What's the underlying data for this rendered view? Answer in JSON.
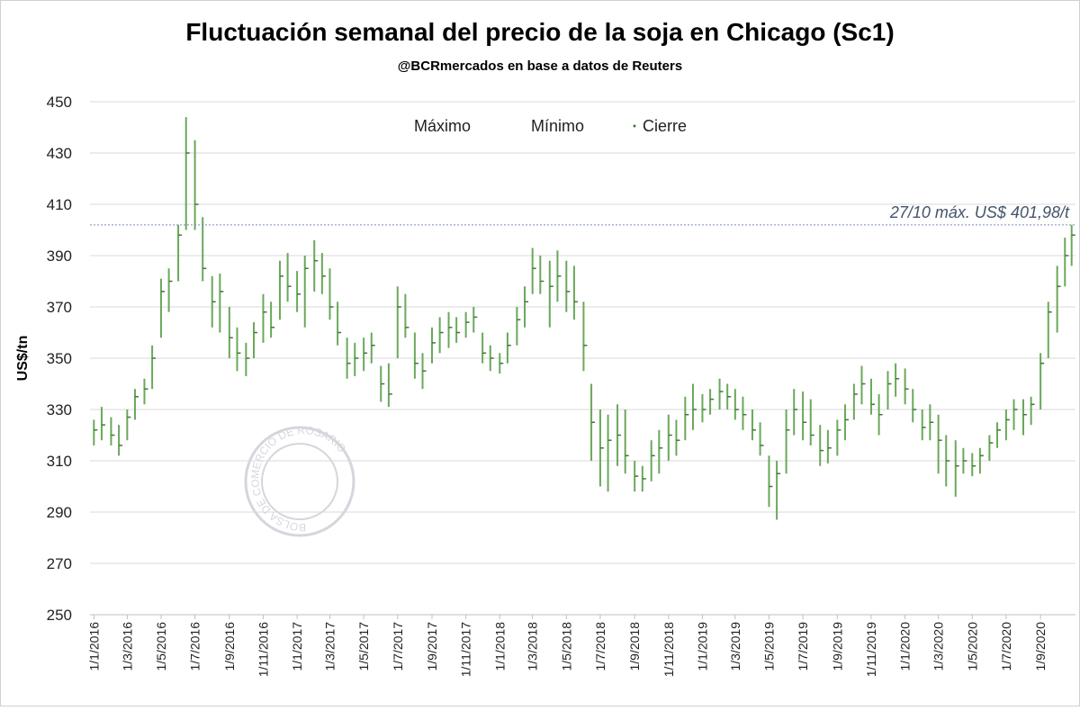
{
  "chart_data": {
    "type": "hlc",
    "title": "Fluctuación semanal del precio de la soja en Chicago (Sc1)",
    "subtitle": "@BCRmercados en base a datos de Reuters",
    "y_label": "US$/tn",
    "watermark": "BOLSA DE COMERCIO DE ROSARIO",
    "color": "#6aa85a",
    "grid": true,
    "legend": "top",
    "annotation": {
      "text": "27/10 máx. US$ 401,98/t",
      "value": 401.98
    },
    "xlim": [
      "25/12/2015",
      "3/11/2020"
    ],
    "xticks": [
      "1/1/2016",
      "1/3/2016",
      "1/5/2016",
      "1/7/2016",
      "1/9/2016",
      "1/11/2016",
      "1/1/2017",
      "1/3/2017",
      "1/5/2017",
      "1/7/2017",
      "1/9/2017",
      "1/11/2017",
      "1/1/2018",
      "1/3/2018",
      "1/5/2018",
      "1/7/2018",
      "1/9/2018",
      "1/11/2018",
      "1/1/2019",
      "1/3/2019",
      "1/5/2019",
      "1/7/2019",
      "1/9/2019",
      "1/11/2019",
      "1/1/2020",
      "1/3/2020",
      "1/5/2020",
      "1/7/2020",
      "1/9/2020"
    ],
    "ylim": [
      250,
      450
    ],
    "yticks": [
      250,
      270,
      290,
      310,
      330,
      350,
      370,
      390,
      410,
      430,
      450
    ],
    "x": [
      "1/1/2016",
      "15/1/2016",
      "1/2/2016",
      "15/2/2016",
      "1/3/2016",
      "15/3/2016",
      "1/4/2016",
      "15/4/2016",
      "1/5/2016",
      "15/5/2016",
      "1/6/2016",
      "15/6/2016",
      "1/7/2016",
      "15/7/2016",
      "1/8/2016",
      "15/8/2016",
      "1/9/2016",
      "15/9/2016",
      "1/10/2016",
      "15/10/2016",
      "1/11/2016",
      "15/11/2016",
      "1/12/2016",
      "15/12/2016",
      "1/1/2017",
      "15/1/2017",
      "1/2/2017",
      "15/2/2017",
      "1/3/2017",
      "15/3/2017",
      "1/4/2017",
      "15/4/2017",
      "1/5/2017",
      "15/5/2017",
      "1/6/2017",
      "15/6/2017",
      "1/7/2017",
      "15/7/2017",
      "1/8/2017",
      "15/8/2017",
      "1/9/2017",
      "15/9/2017",
      "1/10/2017",
      "15/10/2017",
      "1/11/2017",
      "15/11/2017",
      "1/12/2017",
      "15/12/2017",
      "1/1/2018",
      "15/1/2018",
      "1/2/2018",
      "15/2/2018",
      "1/3/2018",
      "15/3/2018",
      "1/4/2018",
      "15/4/2018",
      "1/5/2018",
      "15/5/2018",
      "1/6/2018",
      "15/6/2018",
      "1/7/2018",
      "15/7/2018",
      "1/8/2018",
      "15/8/2018",
      "1/9/2018",
      "15/9/2018",
      "1/10/2018",
      "15/10/2018",
      "1/11/2018",
      "15/11/2018",
      "1/12/2018",
      "15/12/2018",
      "1/1/2019",
      "15/1/2019",
      "1/2/2019",
      "15/2/2019",
      "1/3/2019",
      "15/3/2019",
      "1/4/2019",
      "15/4/2019",
      "1/5/2019",
      "15/5/2019",
      "1/6/2019",
      "15/6/2019",
      "1/7/2019",
      "15/7/2019",
      "1/8/2019",
      "15/8/2019",
      "1/9/2019",
      "15/9/2019",
      "1/10/2019",
      "15/10/2019",
      "1/11/2019",
      "15/11/2019",
      "1/12/2019",
      "15/12/2019",
      "1/1/2020",
      "15/1/2020",
      "1/2/2020",
      "15/2/2020",
      "1/3/2020",
      "15/3/2020",
      "1/4/2020",
      "15/4/2020",
      "1/5/2020",
      "15/5/2020",
      "1/6/2020",
      "15/6/2020",
      "1/7/2020",
      "15/7/2020",
      "1/8/2020",
      "15/8/2020",
      "1/9/2020",
      "15/9/2020",
      "1/10/2020",
      "15/10/2020",
      "27/10/2020"
    ],
    "series": [
      {
        "name": "Máximo",
        "values": [
          326,
          331,
          327,
          324,
          330,
          338,
          342,
          355,
          381,
          385,
          402,
          444,
          435,
          405,
          382,
          383,
          370,
          362,
          356,
          364,
          375,
          372,
          388,
          391,
          384,
          390,
          396,
          391,
          385,
          372,
          358,
          356,
          358,
          360,
          347,
          348,
          378,
          375,
          360,
          352,
          362,
          366,
          368,
          366,
          368,
          370,
          360,
          355,
          352,
          360,
          370,
          378,
          393,
          390,
          388,
          392,
          388,
          386,
          372,
          340,
          330,
          328,
          332,
          330,
          310,
          308,
          318,
          322,
          328,
          326,
          335,
          340,
          336,
          338,
          342,
          340,
          338,
          335,
          330,
          325,
          312,
          310,
          330,
          338,
          337,
          334,
          324,
          322,
          326,
          332,
          340,
          347,
          342,
          336,
          345,
          348,
          346,
          338,
          330,
          332,
          328,
          320,
          318,
          315,
          313,
          315,
          320,
          325,
          330,
          334,
          334,
          335,
          352,
          372,
          386,
          397,
          401.98
        ]
      },
      {
        "name": "Mínimo",
        "values": [
          316,
          318,
          316,
          312,
          318,
          326,
          332,
          338,
          358,
          368,
          380,
          400,
          400,
          380,
          362,
          360,
          350,
          345,
          343,
          350,
          356,
          358,
          365,
          372,
          368,
          362,
          376,
          375,
          365,
          355,
          342,
          343,
          345,
          348,
          333,
          331,
          350,
          358,
          342,
          338,
          348,
          352,
          354,
          356,
          358,
          360,
          348,
          345,
          344,
          348,
          355,
          362,
          375,
          375,
          362,
          372,
          368,
          365,
          345,
          310,
          300,
          298,
          308,
          305,
          298,
          298,
          302,
          305,
          310,
          312,
          318,
          322,
          325,
          328,
          330,
          330,
          326,
          322,
          318,
          312,
          292,
          287,
          305,
          320,
          318,
          316,
          308,
          309,
          312,
          318,
          326,
          332,
          328,
          320,
          330,
          335,
          332,
          325,
          318,
          318,
          305,
          300,
          296,
          305,
          304,
          305,
          310,
          315,
          318,
          322,
          320,
          324,
          330,
          350,
          360,
          378,
          386
        ]
      },
      {
        "name": "Cierre",
        "values": [
          322,
          324,
          320,
          316,
          327,
          335,
          338,
          350,
          376,
          380,
          398,
          430,
          410,
          385,
          372,
          376,
          358,
          352,
          350,
          360,
          368,
          362,
          382,
          378,
          375,
          385,
          388,
          382,
          370,
          360,
          348,
          350,
          352,
          355,
          340,
          336,
          370,
          362,
          348,
          345,
          356,
          360,
          362,
          360,
          364,
          366,
          352,
          350,
          348,
          355,
          365,
          372,
          385,
          380,
          378,
          382,
          376,
          372,
          355,
          325,
          315,
          318,
          320,
          312,
          304,
          303,
          312,
          315,
          320,
          318,
          328,
          330,
          330,
          334,
          337,
          335,
          330,
          328,
          322,
          316,
          300,
          305,
          322,
          330,
          325,
          320,
          314,
          315,
          322,
          326,
          336,
          340,
          332,
          328,
          340,
          342,
          338,
          330,
          323,
          325,
          318,
          310,
          308,
          310,
          308,
          312,
          317,
          322,
          326,
          330,
          328,
          332,
          348,
          368,
          378,
          390,
          398
        ]
      }
    ]
  }
}
